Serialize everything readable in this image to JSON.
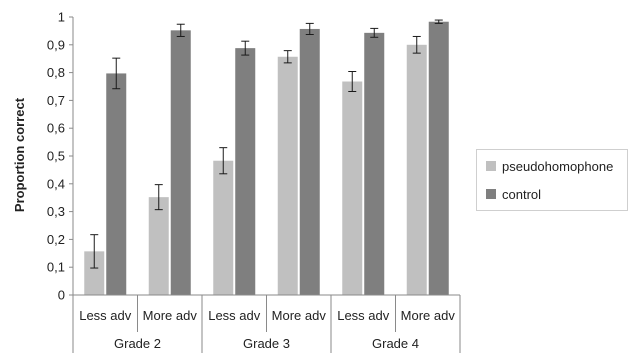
{
  "chart_data": {
    "type": "bar",
    "ylabel": "Proportion correct",
    "ylim": [
      0,
      1
    ],
    "yticks": [
      0,
      0.1,
      0.2,
      0.3,
      0.4,
      0.5,
      0.6,
      0.7,
      0.8,
      0.9,
      1
    ],
    "ytick_labels": [
      "0",
      "0,1",
      "0,2",
      "0,3",
      "0,4",
      "0,5",
      "0,6",
      "0,7",
      "0,8",
      "0,9",
      "1"
    ],
    "categories": [
      "Less adv",
      "More adv",
      "Less adv",
      "More adv",
      "Less adv",
      "More adv"
    ],
    "groups": [
      {
        "label": "Grade 2",
        "categories": [
          "Less adv",
          "More adv"
        ]
      },
      {
        "label": "Grade 3",
        "categories": [
          "Less adv",
          "More adv"
        ]
      },
      {
        "label": "Grade 4",
        "categories": [
          "Less adv",
          "More adv"
        ]
      }
    ],
    "series": [
      {
        "name": "pseudohomophone",
        "color": "#c0c0c0",
        "values": [
          0.157,
          0.352,
          0.483,
          0.857,
          0.768,
          0.9
        ],
        "errors": [
          0.06,
          0.045,
          0.047,
          0.022,
          0.036,
          0.03
        ]
      },
      {
        "name": "control",
        "color": "#7f7f7f",
        "values": [
          0.797,
          0.952,
          0.888,
          0.957,
          0.943,
          0.983
        ],
        "errors": [
          0.055,
          0.022,
          0.025,
          0.02,
          0.016,
          0.006
        ]
      }
    ],
    "grid": false,
    "legend_position": "right"
  }
}
